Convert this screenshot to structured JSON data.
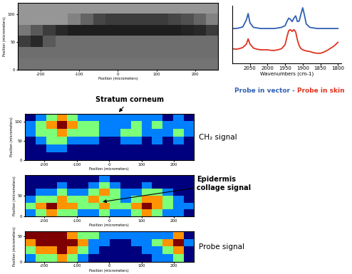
{
  "chart_data": [
    {
      "type": "image",
      "color": "gray",
      "cell_range": [
        0,
        255
      ],
      "x_label": "Position (micrometers)",
      "y_label": "Position (micrometers)",
      "xlim": [
        -260,
        260
      ],
      "ylim": [
        0,
        120
      ],
      "xticks": [
        -200,
        -100,
        0,
        100,
        200
      ],
      "yticks": [
        0,
        50,
        100
      ],
      "cells": [
        [
          150,
          150,
          150,
          150,
          150,
          150,
          150,
          150,
          150,
          150,
          150,
          150,
          150,
          150,
          150,
          150
        ],
        [
          150,
          150,
          150,
          150,
          130,
          100,
          70,
          60,
          60,
          60,
          60,
          60,
          70,
          80,
          100,
          130
        ],
        [
          120,
          90,
          60,
          40,
          30,
          30,
          30,
          30,
          30,
          30,
          30,
          30,
          30,
          35,
          40,
          60
        ],
        [
          60,
          40,
          90,
          110,
          110,
          110,
          110,
          110,
          110,
          110,
          110,
          110,
          110,
          110,
          110,
          110
        ],
        [
          110,
          110,
          110,
          110,
          110,
          110,
          110,
          110,
          110,
          110,
          110,
          110,
          110,
          110,
          110,
          110
        ],
        [
          115,
          115,
          115,
          115,
          115,
          115,
          115,
          115,
          115,
          115,
          115,
          115,
          115,
          115,
          115,
          115
        ]
      ]
    },
    {
      "type": "line",
      "x_label": "Wavenumbers (cm-1)",
      "tick_labels": "x",
      "separator": "-",
      "xlim": [
        2100,
        1790
      ],
      "ylim": [
        0,
        10
      ],
      "xticks": [
        2050,
        2000,
        1950,
        1900,
        1850,
        1800
      ],
      "yticks": [],
      "x": [
        2100,
        2090,
        2080,
        2070,
        2060,
        2055,
        2050,
        2040,
        2030,
        2020,
        2010,
        2000,
        1990,
        1980,
        1970,
        1960,
        1950,
        1945,
        1940,
        1935,
        1930,
        1925,
        1920,
        1915,
        1910,
        1905,
        1900,
        1895,
        1890,
        1880,
        1870,
        1860,
        1850,
        1840,
        1830,
        1820,
        1810,
        1800
      ],
      "series": [
        {
          "name": "Probe in vector",
          "color": "#2f5fb3",
          "values": [
            6.0,
            6.0,
            6.1,
            6.3,
            7.5,
            8.6,
            7.0,
            6.2,
            6.1,
            6.0,
            6.0,
            6.0,
            6.0,
            6.0,
            6.1,
            6.2,
            6.5,
            7.2,
            7.8,
            7.6,
            7.2,
            7.8,
            8.2,
            7.2,
            7.3,
            8.5,
            9.6,
            8.3,
            6.8,
            6.2,
            6.1,
            6.0,
            6.0,
            6.0,
            6.0,
            6.0,
            6.0,
            6.0
          ]
        },
        {
          "name": "Probe in skin",
          "color": "#e0321f",
          "values": [
            2.5,
            2.4,
            2.5,
            2.7,
            3.3,
            4.2,
            3.3,
            2.6,
            2.4,
            2.3,
            2.3,
            2.3,
            2.2,
            2.2,
            2.3,
            2.5,
            3.2,
            4.5,
            5.6,
            5.8,
            5.5,
            5.8,
            5.4,
            4.0,
            3.0,
            2.5,
            2.3,
            2.2,
            2.1,
            2.0,
            1.8,
            1.7,
            1.7,
            1.9,
            2.2,
            2.6,
            3.0,
            3.6
          ]
        }
      ]
    },
    {
      "type": "heatmap",
      "title": "CH₂ signal",
      "annotation": "Stratum corneum",
      "color": "jet",
      "cell_range": [
        0,
        4
      ],
      "x_label": "Position (micrometers)",
      "y_label": "Position (micrometers)",
      "xlim": [
        -260,
        260
      ],
      "ylim": [
        0,
        120
      ],
      "xticks": [
        -200,
        -100,
        0,
        100,
        200
      ],
      "yticks": [
        0,
        50,
        100
      ],
      "cells": [
        [
          0,
          1,
          2,
          3,
          2,
          1,
          1,
          1,
          1,
          1,
          1,
          1,
          1,
          0,
          1,
          0
        ],
        [
          1,
          2,
          3,
          4,
          3,
          2,
          2,
          1,
          1,
          1,
          2,
          1,
          2,
          1,
          1,
          1
        ],
        [
          1,
          2,
          2,
          3,
          2,
          2,
          2,
          1,
          1,
          2,
          2,
          1,
          1,
          1,
          2,
          1
        ],
        [
          0,
          1,
          2,
          2,
          1,
          1,
          1,
          0,
          0,
          1,
          1,
          0,
          1,
          0,
          1,
          0
        ],
        [
          0,
          0,
          1,
          1,
          0,
          0,
          0,
          0,
          0,
          0,
          0,
          0,
          0,
          0,
          0,
          0
        ],
        [
          0,
          0,
          0,
          0,
          0,
          0,
          0,
          0,
          0,
          0,
          0,
          0,
          0,
          0,
          0,
          0
        ]
      ]
    },
    {
      "type": "heatmap",
      "annotation": "Epidermis collage signal",
      "color": "jet",
      "cell_range": [
        0,
        4
      ],
      "x_label": "Position (micrometers)",
      "y_label": "Position (micrometers)",
      "xlim": [
        -260,
        260
      ],
      "ylim": [
        0,
        100
      ],
      "xticks": [
        -200,
        -100,
        0,
        100,
        200
      ],
      "yticks": [
        0,
        50
      ],
      "cells": [
        [
          0,
          0,
          0,
          0,
          0,
          0,
          0,
          1,
          0,
          0,
          0,
          0,
          0,
          0,
          0,
          0
        ],
        [
          0,
          0,
          0,
          1,
          0,
          0,
          1,
          2,
          1,
          0,
          0,
          1,
          0,
          0,
          0,
          0
        ],
        [
          0,
          1,
          1,
          2,
          1,
          1,
          2,
          3,
          2,
          1,
          1,
          2,
          2,
          1,
          0,
          0
        ],
        [
          1,
          2,
          2,
          3,
          2,
          2,
          3,
          2,
          2,
          1,
          2,
          3,
          3,
          2,
          1,
          0
        ],
        [
          2,
          3,
          4,
          3,
          3,
          2,
          2,
          3,
          2,
          2,
          3,
          4,
          3,
          2,
          1,
          1
        ],
        [
          1,
          2,
          3,
          2,
          2,
          1,
          1,
          2,
          1,
          1,
          2,
          3,
          2,
          1,
          1,
          0
        ]
      ]
    },
    {
      "type": "heatmap",
      "title": "Probe signal",
      "color": "jet",
      "cell_range": [
        0,
        4
      ],
      "x_label": "Position (micrometers)",
      "y_label": "Position (micrometers)",
      "xlim": [
        -260,
        260
      ],
      "ylim": [
        0,
        60
      ],
      "xticks": [
        -200,
        -100,
        0,
        100,
        200
      ],
      "yticks": [
        0,
        50
      ],
      "cells": [
        [
          4,
          4,
          4,
          4,
          3,
          2,
          2,
          1,
          1,
          1,
          1,
          1,
          1,
          1,
          3,
          0
        ],
        [
          3,
          4,
          4,
          4,
          4,
          3,
          1,
          1,
          0,
          0,
          1,
          1,
          2,
          3,
          4,
          1
        ],
        [
          2,
          3,
          3,
          4,
          3,
          2,
          1,
          0,
          0,
          0,
          0,
          1,
          1,
          2,
          3,
          0
        ],
        [
          1,
          2,
          2,
          3,
          2,
          1,
          0,
          0,
          0,
          0,
          0,
          0,
          1,
          1,
          2,
          0
        ]
      ]
    }
  ]
}
